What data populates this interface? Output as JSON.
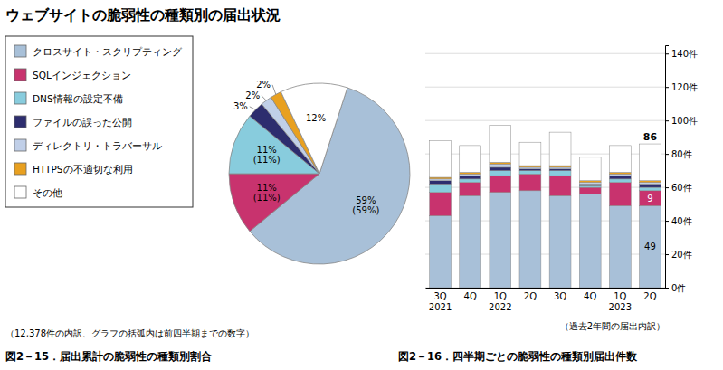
{
  "title": "ウェブサイトの脆弱性の種類別の届出状況",
  "chart_data": [
    {
      "type": "pie",
      "title": "図2－15．届出累計の脆弱性の種類別割合",
      "subtitle": "（12,378件の内訳、グラフの括弧内は前四半期までの数字）",
      "categories": [
        "クロスサイト・スクリプティング",
        "SQLインジェクション",
        "DNS情報の設定不備",
        "ファイルの誤った公開",
        "ディレクトリ・トラバーサル",
        "HTTPSの不適切な利用",
        "その他"
      ],
      "values": [
        59,
        11,
        11,
        3,
        2,
        2,
        12
      ],
      "value_labels": [
        "59%\n(59%)",
        "11%\n(11%)",
        "11%\n(11%)",
        "3%",
        "2%",
        "2%",
        "12%"
      ],
      "colors": [
        "#a8c0d8",
        "#c8336e",
        "#88ccdd",
        "#2d2d6e",
        "#c0cfe8",
        "#e8a020",
        "#ffffff"
      ],
      "data_labels": true,
      "legend": "upper-left"
    },
    {
      "type": "bar",
      "title": "図2－16．四半期ごとの脆弱性の種類別届出件数",
      "xlabel": "（過去2年間の届出内訳）",
      "categories": [
        "3Q\n2021",
        "4Q",
        "1Q\n2022",
        "2Q",
        "3Q",
        "4Q",
        "1Q\n2023",
        "2Q"
      ],
      "stacked": true,
      "series": [
        {
          "name": "クロスサイト・スクリプティング",
          "color": "#a8c0d8",
          "values": [
            43,
            55,
            57,
            58,
            55,
            56,
            49,
            49
          ]
        },
        {
          "name": "SQLインジェクション",
          "color": "#c8336e",
          "values": [
            14,
            8,
            10,
            10,
            12,
            4,
            14,
            9
          ]
        },
        {
          "name": "DNS情報の設定不備",
          "color": "#88ccdd",
          "values": [
            5,
            2,
            3,
            2,
            3,
            1,
            2,
            2
          ]
        },
        {
          "name": "ファイルの誤った公開",
          "color": "#2d2d6e",
          "values": [
            2,
            2,
            2,
            1,
            1,
            1,
            2,
            2
          ]
        },
        {
          "name": "ディレクトリ・トラバーサル",
          "color": "#c0cfe8",
          "values": [
            1,
            1,
            2,
            1,
            1,
            1,
            1,
            1
          ]
        },
        {
          "name": "HTTPSの不適切な利用",
          "color": "#e8a020",
          "values": [
            1,
            1,
            1,
            1,
            1,
            1,
            1,
            1
          ]
        },
        {
          "name": "その他",
          "color": "#ffffff",
          "values": [
            22,
            16,
            22,
            14,
            20,
            14,
            16,
            22
          ]
        }
      ],
      "ylim": [
        0,
        145
      ],
      "yticks": [
        {
          "value": 0,
          "label": "0件"
        },
        {
          "value": 20,
          "label": "20件"
        },
        {
          "value": 40,
          "label": "40件"
        },
        {
          "value": 60,
          "label": "60件"
        },
        {
          "value": 80,
          "label": "80件"
        },
        {
          "value": 100,
          "label": "100件"
        },
        {
          "value": 120,
          "label": "120件"
        },
        {
          "value": 140,
          "label": "140件"
        }
      ],
      "grid": true,
      "annotations": [
        {
          "text": "86",
          "value": 86,
          "index": 7
        },
        {
          "text": "49",
          "value": 49,
          "series": 0,
          "index": 7
        },
        {
          "text": "9",
          "value": 9,
          "series": 1,
          "index": 7
        }
      ]
    }
  ]
}
